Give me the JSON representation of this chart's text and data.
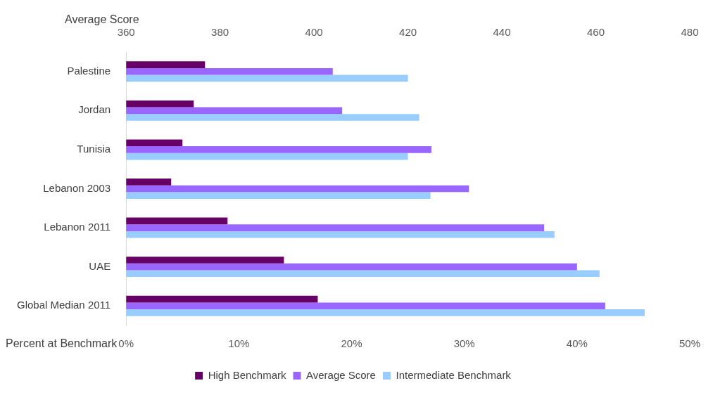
{
  "chart_data": {
    "type": "bar",
    "orientation": "horizontal",
    "xlabel": "Percent at Benchmark",
    "x2label": "Average Score",
    "categories": [
      "Palestine",
      "Jordan",
      "Tunisia",
      "Lebanon 2003",
      "Lebanon 2011",
      "UAE",
      "Global Median 2011"
    ],
    "series": [
      {
        "name": "High Benchmark",
        "color": "#660066",
        "values": [
          7,
          6,
          5,
          4,
          9,
          14,
          17
        ]
      },
      {
        "name": "Average Score",
        "color": "#9966ff",
        "axis": "x2",
        "values": [
          404,
          406,
          425,
          433,
          449,
          456,
          462
        ]
      },
      {
        "name": "Intermediate Benchmark",
        "color": "#99ccff",
        "values": [
          25,
          26,
          25,
          27,
          38,
          42,
          46
        ]
      }
    ],
    "xlim": [
      0,
      50
    ],
    "xticks": [
      {
        "value": 0,
        "label": "0%"
      },
      {
        "value": 10,
        "label": "10%"
      },
      {
        "value": 20,
        "label": "20%"
      },
      {
        "value": 30,
        "label": "30%"
      },
      {
        "value": 40,
        "label": "40%"
      },
      {
        "value": 50,
        "label": "50%"
      }
    ],
    "x2lim": [
      360,
      480
    ],
    "x2ticks": [
      360,
      380,
      400,
      420,
      440,
      460,
      480
    ],
    "grid": false,
    "legend": "bottom"
  }
}
